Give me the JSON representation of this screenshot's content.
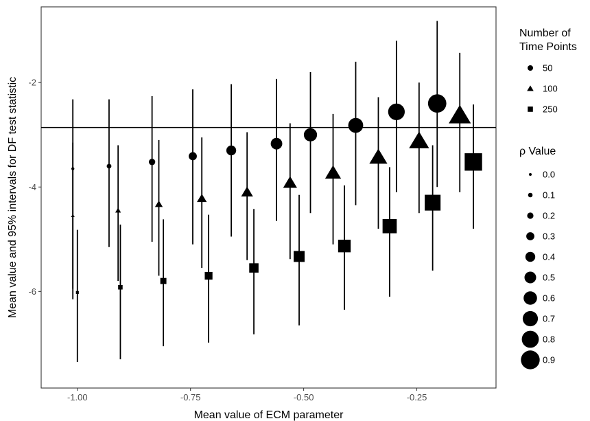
{
  "chart_data": {
    "type": "scatter",
    "xlabel": "Mean value of ECM parameter",
    "ylabel": "Mean value and 95% intervals for DF test statistic",
    "xlim": [
      -1.08,
      -0.075
    ],
    "ylim": [
      -7.85,
      -0.55
    ],
    "x_ticks": [
      -1.0,
      -0.75,
      -0.5,
      -0.25
    ],
    "x_tick_labels": [
      "-1.00",
      "-0.75",
      "-0.50",
      "-0.25"
    ],
    "y_ticks": [
      -6,
      -4,
      -2
    ],
    "y_tick_labels": [
      "-6",
      "-4",
      "-2"
    ],
    "reference_line_y": -2.86,
    "grid": false,
    "legend_position": "right",
    "color": "#000000",
    "legend": {
      "shape": {
        "title": "Number of\nTime Points",
        "entries": [
          {
            "label": "50",
            "shape": "circle"
          },
          {
            "label": "100",
            "shape": "triangle"
          },
          {
            "label": "250",
            "shape": "square"
          }
        ]
      },
      "size": {
        "title": "ρ Value",
        "entries": [
          "0.0",
          "0.1",
          "0.2",
          "0.3",
          "0.4",
          "0.5",
          "0.6",
          "0.7",
          "0.8",
          "0.9"
        ]
      }
    },
    "series": [
      {
        "shape": "circle",
        "points": [
          {
            "rho": 0.0,
            "x": -1.01,
            "y": -3.65,
            "low": -6.15,
            "high": -2.32
          },
          {
            "rho": 0.1,
            "x": -0.93,
            "y": -3.6,
            "low": -5.15,
            "high": -2.32
          },
          {
            "rho": 0.2,
            "x": -0.835,
            "y": -3.52,
            "low": -5.05,
            "high": -2.26
          },
          {
            "rho": 0.3,
            "x": -0.745,
            "y": -3.41,
            "low": -5.1,
            "high": -2.13
          },
          {
            "rho": 0.4,
            "x": -0.66,
            "y": -3.3,
            "low": -4.95,
            "high": -2.03
          },
          {
            "rho": 0.5,
            "x": -0.56,
            "y": -3.17,
            "low": -4.65,
            "high": -1.93
          },
          {
            "rho": 0.6,
            "x": -0.485,
            "y": -3.0,
            "low": -4.5,
            "high": -1.8
          },
          {
            "rho": 0.7,
            "x": -0.385,
            "y": -2.82,
            "low": -4.35,
            "high": -1.6
          },
          {
            "rho": 0.8,
            "x": -0.295,
            "y": -2.56,
            "low": -4.1,
            "high": -1.2
          },
          {
            "rho": 0.9,
            "x": -0.205,
            "y": -2.4,
            "low": -4.0,
            "high": -0.82
          }
        ]
      },
      {
        "shape": "triangle",
        "points": [
          {
            "rho": 0.0,
            "x": -1.01,
            "y": -4.55,
            "low": -5.95,
            "high": -3.15
          },
          {
            "rho": 0.1,
            "x": -0.91,
            "y": -4.45,
            "low": -5.8,
            "high": -3.2
          },
          {
            "rho": 0.2,
            "x": -0.82,
            "y": -4.33,
            "low": -5.7,
            "high": -3.1
          },
          {
            "rho": 0.3,
            "x": -0.725,
            "y": -4.22,
            "low": -5.55,
            "high": -3.05
          },
          {
            "rho": 0.4,
            "x": -0.625,
            "y": -4.1,
            "low": -5.4,
            "high": -2.95
          },
          {
            "rho": 0.5,
            "x": -0.53,
            "y": -3.92,
            "low": -5.38,
            "high": -2.78
          },
          {
            "rho": 0.6,
            "x": -0.435,
            "y": -3.73,
            "low": -5.1,
            "high": -2.6
          },
          {
            "rho": 0.7,
            "x": -0.335,
            "y": -3.43,
            "low": -4.8,
            "high": -2.28
          },
          {
            "rho": 0.8,
            "x": -0.245,
            "y": -3.12,
            "low": -4.5,
            "high": -2.0
          },
          {
            "rho": 0.9,
            "x": -0.155,
            "y": -2.63,
            "low": -4.1,
            "high": -1.43
          }
        ]
      },
      {
        "shape": "square",
        "points": [
          {
            "rho": 0.0,
            "x": -1.0,
            "y": -6.02,
            "low": -7.35,
            "high": -4.82
          },
          {
            "rho": 0.1,
            "x": -0.905,
            "y": -5.92,
            "low": -7.3,
            "high": -4.72
          },
          {
            "rho": 0.2,
            "x": -0.81,
            "y": -5.8,
            "low": -7.05,
            "high": -4.62
          },
          {
            "rho": 0.3,
            "x": -0.71,
            "y": -5.7,
            "low": -6.98,
            "high": -4.53
          },
          {
            "rho": 0.4,
            "x": -0.61,
            "y": -5.55,
            "low": -6.82,
            "high": -4.42
          },
          {
            "rho": 0.5,
            "x": -0.51,
            "y": -5.33,
            "low": -6.65,
            "high": -4.15
          },
          {
            "rho": 0.6,
            "x": -0.41,
            "y": -5.13,
            "low": -6.35,
            "high": -3.97
          },
          {
            "rho": 0.7,
            "x": -0.31,
            "y": -4.75,
            "low": -6.1,
            "high": -3.62
          },
          {
            "rho": 0.8,
            "x": -0.215,
            "y": -4.3,
            "low": -5.6,
            "high": -3.2
          },
          {
            "rho": 0.9,
            "x": -0.125,
            "y": -3.52,
            "low": -4.8,
            "high": -2.42
          }
        ]
      }
    ]
  }
}
